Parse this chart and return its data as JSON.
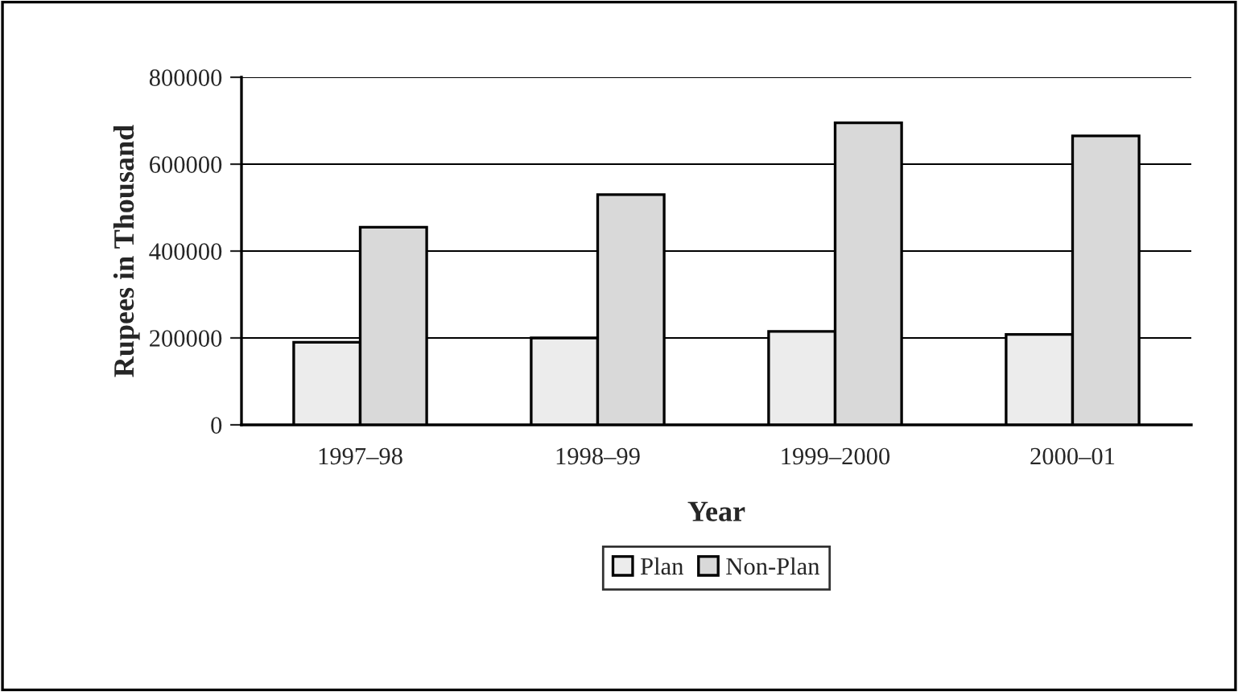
{
  "chart_data": {
    "type": "bar",
    "xlabel": "Year",
    "ylabel": "Rupees in Thousand",
    "categories": [
      "1997–98",
      "1998–99",
      "1999–2000",
      "2000–01"
    ],
    "series": [
      {
        "name": "Plan",
        "color": "#ececec",
        "values": [
          190000,
          200000,
          215000,
          208000
        ]
      },
      {
        "name": "Non-Plan",
        "color": "#d9d9d9",
        "values": [
          455000,
          530000,
          695000,
          665000
        ]
      }
    ],
    "ylim": [
      0,
      800000
    ],
    "yticks": [
      0,
      200000,
      400000,
      600000,
      800000
    ],
    "grid": "y",
    "legend": "bottom"
  }
}
